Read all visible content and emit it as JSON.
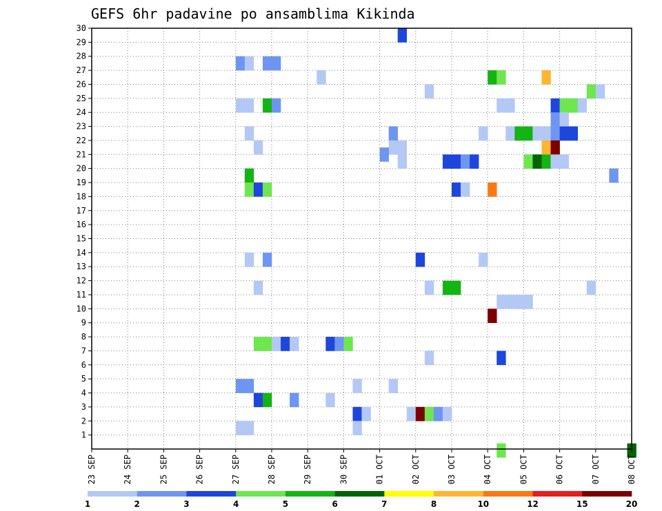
{
  "chart_data": {
    "type": "heatmap",
    "title": "GEFS 6hr padavine po ansamblima Kikinda",
    "x_tick_labels": [
      "23 SEP",
      "24 SEP",
      "25 SEP",
      "26 SEP",
      "27 SEP",
      "28 SEP",
      "29 SEP",
      "30 SEP",
      "01 OCT",
      "02 OCT",
      "03 OCT",
      "04 OCT",
      "05 OCT",
      "06 OCT",
      "07 OCT",
      "08 OCT"
    ],
    "y_tick_labels": [
      "1",
      "2",
      "3",
      "4",
      "5",
      "6",
      "7",
      "8",
      "9",
      "10",
      "11",
      "12",
      "13",
      "14",
      "15",
      "16",
      "17",
      "18",
      "19",
      "20",
      "21",
      "22",
      "23",
      "24",
      "25",
      "26",
      "27",
      "28",
      "29",
      "30"
    ],
    "xlim": [
      0,
      15
    ],
    "ylim": [
      0,
      30
    ],
    "grid": true,
    "legend": {
      "placement": "bottom",
      "colors": [
        "#b4c8f5",
        "#6e96f0",
        "#1e46dc",
        "#6ee650",
        "#14b414",
        "#006400",
        "#ffff00",
        "#ffb432",
        "#fa7814",
        "#e61e1e",
        "#7d0000"
      ],
      "labels": [
        "1",
        "2",
        "3",
        "4",
        "5",
        "6",
        "7",
        "8",
        "10",
        "12",
        "15",
        "20"
      ]
    },
    "cells": [
      {
        "x": 8.5,
        "y": 30,
        "c": 2
      },
      {
        "x": 4.0,
        "y": 28,
        "c": 1
      },
      {
        "x": 4.25,
        "y": 28,
        "c": 0
      },
      {
        "x": 4.75,
        "y": 28,
        "c": 1
      },
      {
        "x": 5.0,
        "y": 28,
        "c": 1
      },
      {
        "x": 6.25,
        "y": 27,
        "c": 0
      },
      {
        "x": 11.0,
        "y": 27,
        "c": 4
      },
      {
        "x": 11.25,
        "y": 27,
        "c": 3
      },
      {
        "x": 12.5,
        "y": 27,
        "c": 7
      },
      {
        "x": 9.25,
        "y": 26,
        "c": 0
      },
      {
        "x": 13.75,
        "y": 26,
        "c": 3
      },
      {
        "x": 14.0,
        "y": 26,
        "c": 0
      },
      {
        "x": 4.0,
        "y": 25,
        "c": 0
      },
      {
        "x": 4.25,
        "y": 25,
        "c": 0
      },
      {
        "x": 4.75,
        "y": 25,
        "c": 4
      },
      {
        "x": 5.0,
        "y": 25,
        "c": 1
      },
      {
        "x": 11.25,
        "y": 25,
        "c": 0
      },
      {
        "x": 11.5,
        "y": 25,
        "c": 0
      },
      {
        "x": 12.75,
        "y": 25,
        "c": 2
      },
      {
        "x": 13.0,
        "y": 25,
        "c": 3
      },
      {
        "x": 13.25,
        "y": 25,
        "c": 3
      },
      {
        "x": 13.5,
        "y": 25,
        "c": 0
      },
      {
        "x": 12.75,
        "y": 24,
        "c": 1
      },
      {
        "x": 13.0,
        "y": 24,
        "c": 0
      },
      {
        "x": 4.25,
        "y": 23,
        "c": 0
      },
      {
        "x": 8.25,
        "y": 23,
        "c": 1
      },
      {
        "x": 10.75,
        "y": 23,
        "c": 0
      },
      {
        "x": 11.5,
        "y": 23,
        "c": 0
      },
      {
        "x": 11.75,
        "y": 23,
        "c": 4
      },
      {
        "x": 12.0,
        "y": 23,
        "c": 4
      },
      {
        "x": 12.25,
        "y": 23,
        "c": 0
      },
      {
        "x": 12.5,
        "y": 23,
        "c": 0
      },
      {
        "x": 12.75,
        "y": 23,
        "c": 1
      },
      {
        "x": 13.0,
        "y": 23,
        "c": 2
      },
      {
        "x": 13.25,
        "y": 23,
        "c": 2
      },
      {
        "x": 4.5,
        "y": 22,
        "c": 0
      },
      {
        "x": 8.25,
        "y": 22,
        "c": 0
      },
      {
        "x": 8.5,
        "y": 22,
        "c": 0
      },
      {
        "x": 12.5,
        "y": 22,
        "c": 7
      },
      {
        "x": 12.75,
        "y": 22,
        "c": 10
      },
      {
        "x": 8.5,
        "y": 21,
        "c": 0
      },
      {
        "x": 9.75,
        "y": 21,
        "c": 2
      },
      {
        "x": 10.0,
        "y": 21,
        "c": 2
      },
      {
        "x": 10.25,
        "y": 21,
        "c": 1
      },
      {
        "x": 10.5,
        "y": 21,
        "c": 2
      },
      {
        "x": 12.0,
        "y": 21,
        "c": 3
      },
      {
        "x": 12.25,
        "y": 21,
        "c": 5
      },
      {
        "x": 12.5,
        "y": 21,
        "c": 4
      },
      {
        "x": 12.75,
        "y": 21,
        "c": 0
      },
      {
        "x": 13.0,
        "y": 21,
        "c": 0
      },
      {
        "x": 8.0,
        "y": 21.5,
        "c": 1
      },
      {
        "x": 4.25,
        "y": 20,
        "c": 4
      },
      {
        "x": 14.375,
        "y": 20,
        "c": 1
      },
      {
        "x": 4.25,
        "y": 19,
        "c": 3
      },
      {
        "x": 4.5,
        "y": 19,
        "c": 2
      },
      {
        "x": 4.75,
        "y": 19,
        "c": 3
      },
      {
        "x": 10.0,
        "y": 19,
        "c": 2
      },
      {
        "x": 10.25,
        "y": 19,
        "c": 0
      },
      {
        "x": 11.0,
        "y": 19,
        "c": 8
      },
      {
        "x": 4.25,
        "y": 14,
        "c": 0
      },
      {
        "x": 4.75,
        "y": 14,
        "c": 1
      },
      {
        "x": 9.0,
        "y": 14,
        "c": 2
      },
      {
        "x": 10.75,
        "y": 14,
        "c": 0
      },
      {
        "x": 4.5,
        "y": 12,
        "c": 0
      },
      {
        "x": 9.25,
        "y": 12,
        "c": 0
      },
      {
        "x": 9.75,
        "y": 12,
        "c": 4
      },
      {
        "x": 10.0,
        "y": 12,
        "c": 4
      },
      {
        "x": 13.75,
        "y": 12,
        "c": 0
      },
      {
        "x": 11.25,
        "y": 11,
        "c": 0
      },
      {
        "x": 11.5,
        "y": 11,
        "c": 0
      },
      {
        "x": 11.75,
        "y": 11,
        "c": 0
      },
      {
        "x": 12.0,
        "y": 11,
        "c": 0
      },
      {
        "x": 11.0,
        "y": 10,
        "c": 10
      },
      {
        "x": 4.5,
        "y": 8,
        "c": 3
      },
      {
        "x": 4.75,
        "y": 8,
        "c": 3
      },
      {
        "x": 5.0,
        "y": 8,
        "c": 0
      },
      {
        "x": 5.25,
        "y": 8,
        "c": 2
      },
      {
        "x": 5.5,
        "y": 8,
        "c": 0
      },
      {
        "x": 6.5,
        "y": 8,
        "c": 2
      },
      {
        "x": 6.75,
        "y": 8,
        "c": 1
      },
      {
        "x": 7.0,
        "y": 8,
        "c": 3
      },
      {
        "x": 9.25,
        "y": 7,
        "c": 0
      },
      {
        "x": 11.25,
        "y": 7,
        "c": 2
      },
      {
        "x": 4.0,
        "y": 5,
        "c": 1
      },
      {
        "x": 4.25,
        "y": 5,
        "c": 1
      },
      {
        "x": 7.25,
        "y": 5,
        "c": 0
      },
      {
        "x": 8.25,
        "y": 5,
        "c": 0
      },
      {
        "x": 4.5,
        "y": 4,
        "c": 2
      },
      {
        "x": 4.75,
        "y": 4,
        "c": 4
      },
      {
        "x": 5.5,
        "y": 4,
        "c": 1
      },
      {
        "x": 6.5,
        "y": 4,
        "c": 0
      },
      {
        "x": 7.25,
        "y": 3,
        "c": 2
      },
      {
        "x": 7.5,
        "y": 3,
        "c": 0
      },
      {
        "x": 8.75,
        "y": 3,
        "c": 0
      },
      {
        "x": 9.0,
        "y": 3,
        "c": 10
      },
      {
        "x": 9.25,
        "y": 3,
        "c": 3
      },
      {
        "x": 9.5,
        "y": 3,
        "c": 1
      },
      {
        "x": 9.75,
        "y": 3,
        "c": 0
      },
      {
        "x": 4.0,
        "y": 2,
        "c": 0
      },
      {
        "x": 4.25,
        "y": 2,
        "c": 0
      },
      {
        "x": 7.25,
        "y": 2,
        "c": 0
      },
      {
        "x": 11.25,
        "y": 0.4,
        "c": 3
      },
      {
        "x": 14.875,
        "y": 0.4,
        "c": 5
      }
    ]
  }
}
